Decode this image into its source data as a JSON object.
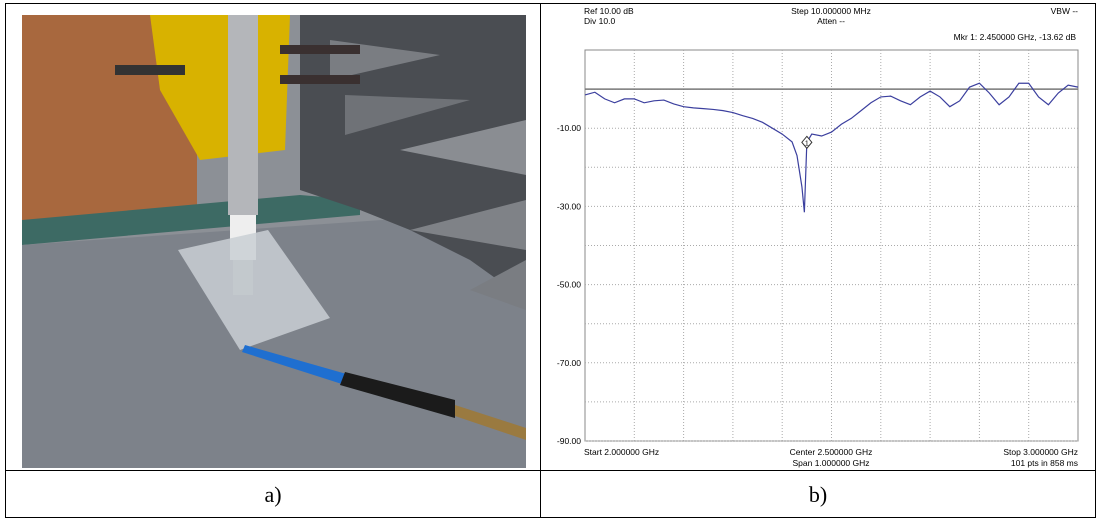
{
  "figure": {
    "captions": [
      "a)",
      "b)"
    ]
  },
  "chart_data": {
    "type": "line",
    "header": {
      "ref": "Ref 10.00 dB",
      "div": "Div 10.0",
      "step": "Step 10.000000 MHz",
      "atten": "Atten --",
      "vbw": "VBW --",
      "marker_readout": "Mkr 1: 2.450000 GHz, -13.62 dB"
    },
    "footer": {
      "start": "Start 2.000000 GHz",
      "center": "Center 2.500000 GHz",
      "span": "Span 1.000000 GHz",
      "stop": "Stop 3.000000 GHz",
      "points": "101 pts in 858 ms"
    },
    "x": [
      2.0,
      2.02,
      2.04,
      2.06,
      2.08,
      2.1,
      2.12,
      2.14,
      2.16,
      2.18,
      2.2,
      2.22,
      2.24,
      2.26,
      2.28,
      2.3,
      2.32,
      2.34,
      2.36,
      2.38,
      2.4,
      2.42,
      2.43,
      2.44,
      2.445,
      2.45,
      2.46,
      2.48,
      2.5,
      2.52,
      2.54,
      2.56,
      2.58,
      2.6,
      2.62,
      2.64,
      2.66,
      2.68,
      2.7,
      2.72,
      2.74,
      2.76,
      2.78,
      2.8,
      2.82,
      2.84,
      2.86,
      2.88,
      2.9,
      2.92,
      2.94,
      2.96,
      2.98,
      3.0
    ],
    "series": [
      {
        "color": "#3b3f9e",
        "values": [
          -1.5,
          -0.8,
          -2.5,
          -3.5,
          -2.5,
          -2.5,
          -3.5,
          -3.0,
          -2.8,
          -3.8,
          -4.5,
          -4.8,
          -5.0,
          -5.2,
          -5.5,
          -6.0,
          -6.8,
          -7.5,
          -8.5,
          -10.0,
          -11.5,
          -13.5,
          -17.0,
          -25.0,
          -31.5,
          -13.62,
          -11.5,
          -12.0,
          -11.0,
          -9.0,
          -7.5,
          -5.5,
          -3.5,
          -2.0,
          -1.8,
          -3.0,
          -4.0,
          -2.0,
          -0.5,
          -2.0,
          -4.5,
          -3.0,
          0.5,
          1.5,
          -1.0,
          -4.0,
          -2.0,
          1.5,
          1.5,
          -2.0,
          -4.0,
          -1.0,
          1.0,
          0.5
        ]
      }
    ],
    "marker": {
      "x": 2.45,
      "value": -13.62,
      "label": "1"
    },
    "reference_line": 0,
    "xlim": [
      2.0,
      3.0
    ],
    "xgrid": [
      2.1,
      2.2,
      2.3,
      2.4,
      2.5,
      2.6,
      2.7,
      2.8,
      2.9
    ],
    "ylim": [
      -90,
      10
    ],
    "yticks": [
      {
        "value": -10,
        "label": "-10.00"
      },
      {
        "value": -30,
        "label": "-30.00"
      },
      {
        "value": -50,
        "label": "-50.00"
      },
      {
        "value": -70,
        "label": "-70.00"
      },
      {
        "value": -90,
        "label": "-90.00"
      }
    ],
    "ygrid": [
      0,
      -20,
      -40,
      -60,
      -80
    ],
    "grid": true
  }
}
